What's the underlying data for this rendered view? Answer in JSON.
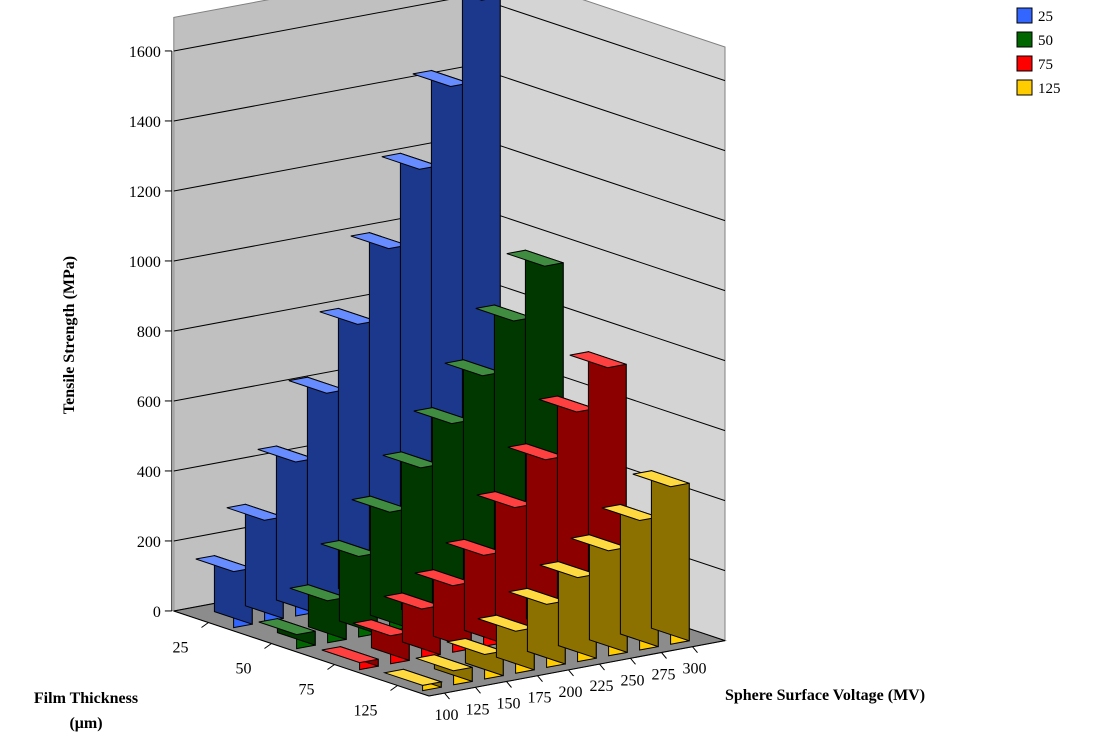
{
  "chart_data": {
    "type": "bar",
    "subtype": "3d-column",
    "title": "",
    "ylabel": "Tensile Strength (MPa)",
    "xlabel": "Sphere Surface Voltage (MV)",
    "zlabel_line1": "Film Thickness",
    "zlabel_line2": "(μm)",
    "ylim": [
      0,
      1600
    ],
    "yticks": [
      "0",
      "200",
      "400",
      "600",
      "800",
      "1000",
      "1200",
      "1400",
      "1600"
    ],
    "categories": [
      "100",
      "125",
      "150",
      "175",
      "200",
      "225",
      "250",
      "275",
      "300"
    ],
    "legend_position": "top-right",
    "grid": true,
    "series": [
      {
        "name": "25",
        "color": "#3366ff",
        "values": [
          160,
          290,
          440,
          620,
          800,
          1000,
          1210,
          1430,
          1660
        ]
      },
      {
        "name": "50",
        "color": "#006600",
        "values": [
          40,
          120,
          230,
          340,
          450,
          560,
          680,
          820,
          960
        ]
      },
      {
        "name": "75",
        "color": "#ff0000",
        "values": [
          20,
          80,
          140,
          190,
          260,
          380,
          500,
          620,
          730
        ]
      },
      {
        "name": "125",
        "color": "#ffcc00",
        "values": [
          15,
          40,
          70,
          120,
          180,
          240,
          300,
          370,
          450
        ]
      }
    ]
  }
}
